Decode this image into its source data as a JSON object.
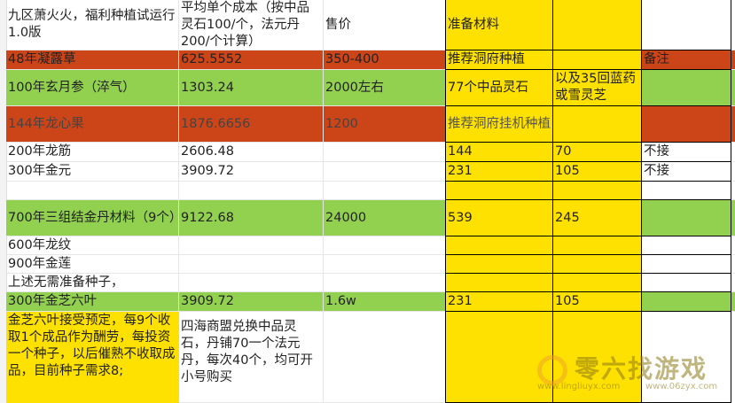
{
  "header": {
    "a": "九区萧火火，福利种植试运行1.0版",
    "b": "平均单个成本（按中品灵石100/个，法元丹200/个计算）",
    "c": "售价",
    "d": "准备材料"
  },
  "rows": [
    {
      "a": "48年凝露草",
      "b": "625.5552",
      "c": "350-400",
      "d": "推荐洞府种植",
      "e": "",
      "f": "备注"
    },
    {
      "a": "100年玄月参（淬气）",
      "b": "1303.24",
      "c": "2000左右",
      "d": "77个中品灵石",
      "e": "以及35回蓝药或雪灵芝",
      "f": ""
    },
    {
      "a": "144年龙心果",
      "b": "1876.6656",
      "c": "1200",
      "d": "推荐洞府挂机种植",
      "e": "",
      "f": ""
    },
    {
      "a": "200年龙筋",
      "b": "2606.48",
      "c": "",
      "d": "144",
      "e": "70",
      "f": "不接"
    },
    {
      "a": "300年金元",
      "b": "3909.72",
      "c": "",
      "d": "231",
      "e": "105",
      "f": "不接"
    },
    {
      "a": "",
      "b": "",
      "c": "",
      "d": "",
      "e": "",
      "f": ""
    },
    {
      "a": "700年三组结金丹材料（9个）",
      "b": "9122.68",
      "c": "24000",
      "d": "539",
      "e": "245",
      "f": ""
    },
    {
      "a": "600年龙纹",
      "b": "",
      "c": "",
      "d": "",
      "e": "",
      "f": ""
    },
    {
      "a": "900年金莲",
      "b": "",
      "c": "",
      "d": "",
      "e": "",
      "f": ""
    },
    {
      "a": "上述无需准备种子，",
      "b": "",
      "c": "",
      "d": "",
      "e": "",
      "f": ""
    },
    {
      "a": "300年金芝六叶",
      "b": "3909.72",
      "c": "1.6w",
      "d": "231",
      "e": "105",
      "f": ""
    }
  ],
  "notes": {
    "a": "金芝六叶接受预定，每9个收取1个成品作为酬劳，每投资一个种子，以后催熟不收取成品，目前种子需求8;",
    "b": "四海商盟兑换中品灵石，丹铺70一个法元丹，每次40个，均可开小号购买"
  },
  "watermark": {
    "name": "零六找游戏",
    "url1": "www.lingliuyx.com",
    "url2": "www.06zyx.com"
  },
  "colors": {
    "orange": "#cc4519",
    "green": "#92d050",
    "yellow": "#ffe100"
  }
}
